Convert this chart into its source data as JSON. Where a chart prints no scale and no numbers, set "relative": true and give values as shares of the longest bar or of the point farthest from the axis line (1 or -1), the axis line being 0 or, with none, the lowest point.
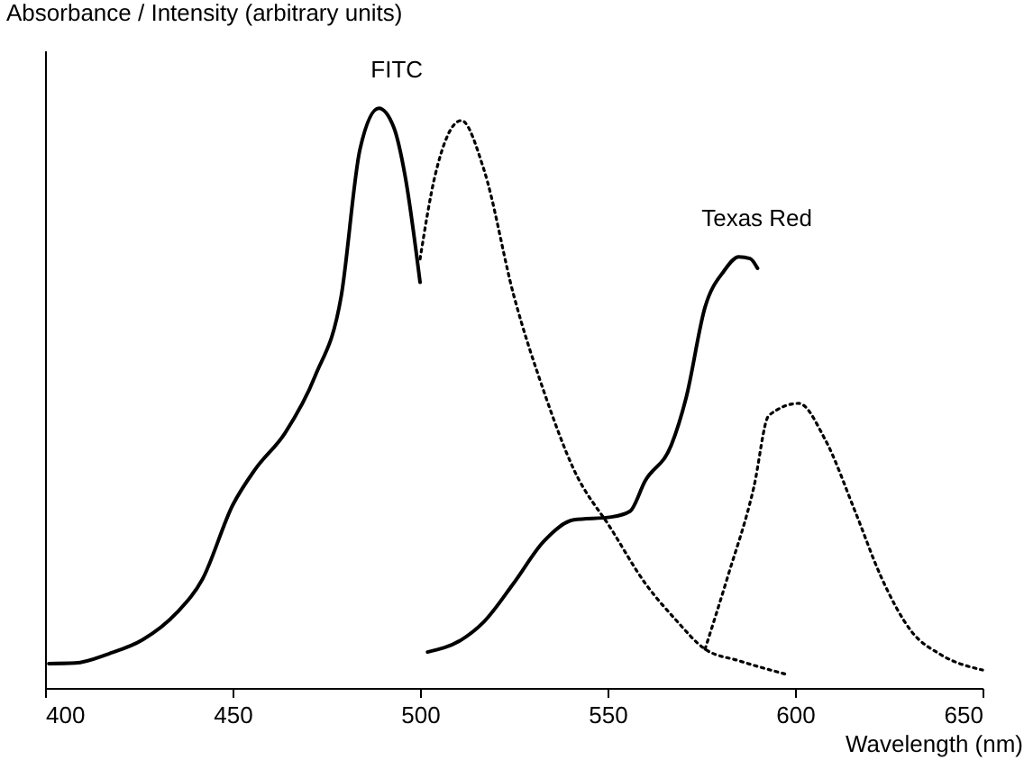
{
  "chart_data": {
    "type": "line",
    "relative": true,
    "ylabel": "Absorbance / Intensity (arbitrary units)",
    "xlabel": "Wavelength (nm)",
    "xlim": [
      400,
      650
    ],
    "xticks": [
      400,
      450,
      500,
      550,
      600,
      650
    ],
    "grid": false,
    "annotations": [
      "FITC",
      "Texas Red"
    ],
    "series": [
      {
        "color": "#000000",
        "line_style": "solid",
        "x": [
          401,
          408,
          417,
          426,
          435,
          442,
          450,
          456,
          464,
          472,
          479,
          484,
          489,
          493,
          496,
          500
        ],
        "values": [
          0.042,
          0.043,
          0.059,
          0.083,
          0.129,
          0.188,
          0.315,
          0.377,
          0.44,
          0.538,
          0.677,
          0.93,
          1.0,
          0.967,
          0.884,
          0.7
        ]
      },
      {
        "color": "#000000",
        "line_style": "dotted",
        "x": [
          500,
          504,
          511,
          517,
          525,
          533,
          541,
          551,
          560,
          568,
          576,
          585,
          598
        ],
        "values": [
          0.74,
          0.884,
          0.979,
          0.895,
          0.677,
          0.512,
          0.377,
          0.274,
          0.181,
          0.119,
          0.067,
          0.047,
          0.023
        ]
      },
      {
        "color": "#000000",
        "line_style": "solid",
        "x": [
          502,
          511,
          517,
          525,
          533,
          541,
          551,
          556,
          560,
          567,
          571,
          576,
          581,
          585,
          588,
          590
        ],
        "values": [
          0.062,
          0.083,
          0.114,
          0.181,
          0.253,
          0.29,
          0.295,
          0.305,
          0.357,
          0.419,
          0.502,
          0.657,
          0.719,
          0.744,
          0.741,
          0.724
        ]
      },
      {
        "color": "#000000",
        "line_style": "dotted",
        "x": [
          576,
          582,
          589,
          593,
          601,
          608,
          616,
          623,
          631,
          639,
          650
        ],
        "values": [
          0.067,
          0.191,
          0.346,
          0.47,
          0.491,
          0.429,
          0.305,
          0.191,
          0.098,
          0.057,
          0.031
        ]
      }
    ]
  }
}
